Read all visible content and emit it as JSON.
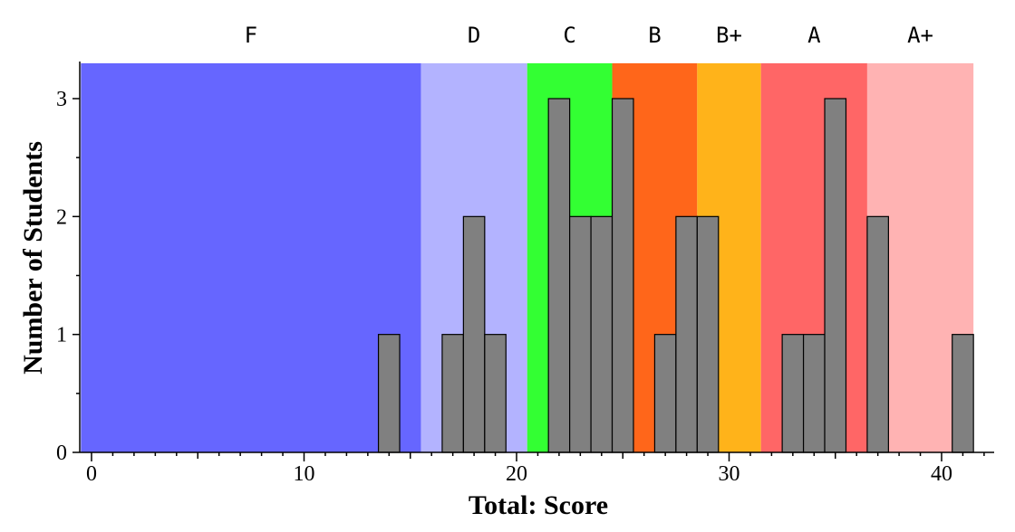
{
  "chart_data": {
    "type": "bar",
    "xlabel": "Total: Score",
    "ylabel": "Number of Students",
    "xlim": [
      -0.5,
      42
    ],
    "ylim": [
      0,
      3.3
    ],
    "x_ticks": [
      0,
      10,
      20,
      30,
      40
    ],
    "y_ticks": [
      0,
      1,
      2,
      3
    ],
    "grid": false,
    "grade_bands": [
      {
        "label": "F",
        "from": -0.5,
        "to": 15.5,
        "color": "#6666ff"
      },
      {
        "label": "D",
        "from": 15.5,
        "to": 20.5,
        "color": "#b3b3ff"
      },
      {
        "label": "C",
        "from": 20.5,
        "to": 24.5,
        "color": "#33ff33"
      },
      {
        "label": "B",
        "from": 24.5,
        "to": 28.5,
        "color": "#ff661a"
      },
      {
        "label": "B+",
        "from": 28.5,
        "to": 31.5,
        "color": "#ffb31a"
      },
      {
        "label": "A",
        "from": 31.5,
        "to": 36.5,
        "color": "#ff6666"
      },
      {
        "label": "A+",
        "from": 36.5,
        "to": 41.5,
        "color": "#ffb3b3"
      }
    ],
    "bins": [
      {
        "x": 14,
        "count": 1
      },
      {
        "x": 17,
        "count": 1
      },
      {
        "x": 18,
        "count": 2
      },
      {
        "x": 19,
        "count": 1
      },
      {
        "x": 22,
        "count": 3
      },
      {
        "x": 23,
        "count": 2
      },
      {
        "x": 24,
        "count": 2
      },
      {
        "x": 25,
        "count": 3
      },
      {
        "x": 27,
        "count": 1
      },
      {
        "x": 28,
        "count": 2
      },
      {
        "x": 29,
        "count": 2
      },
      {
        "x": 33,
        "count": 1
      },
      {
        "x": 34,
        "count": 1
      },
      {
        "x": 35,
        "count": 3
      },
      {
        "x": 37,
        "count": 2
      },
      {
        "x": 41,
        "count": 1
      }
    ]
  }
}
